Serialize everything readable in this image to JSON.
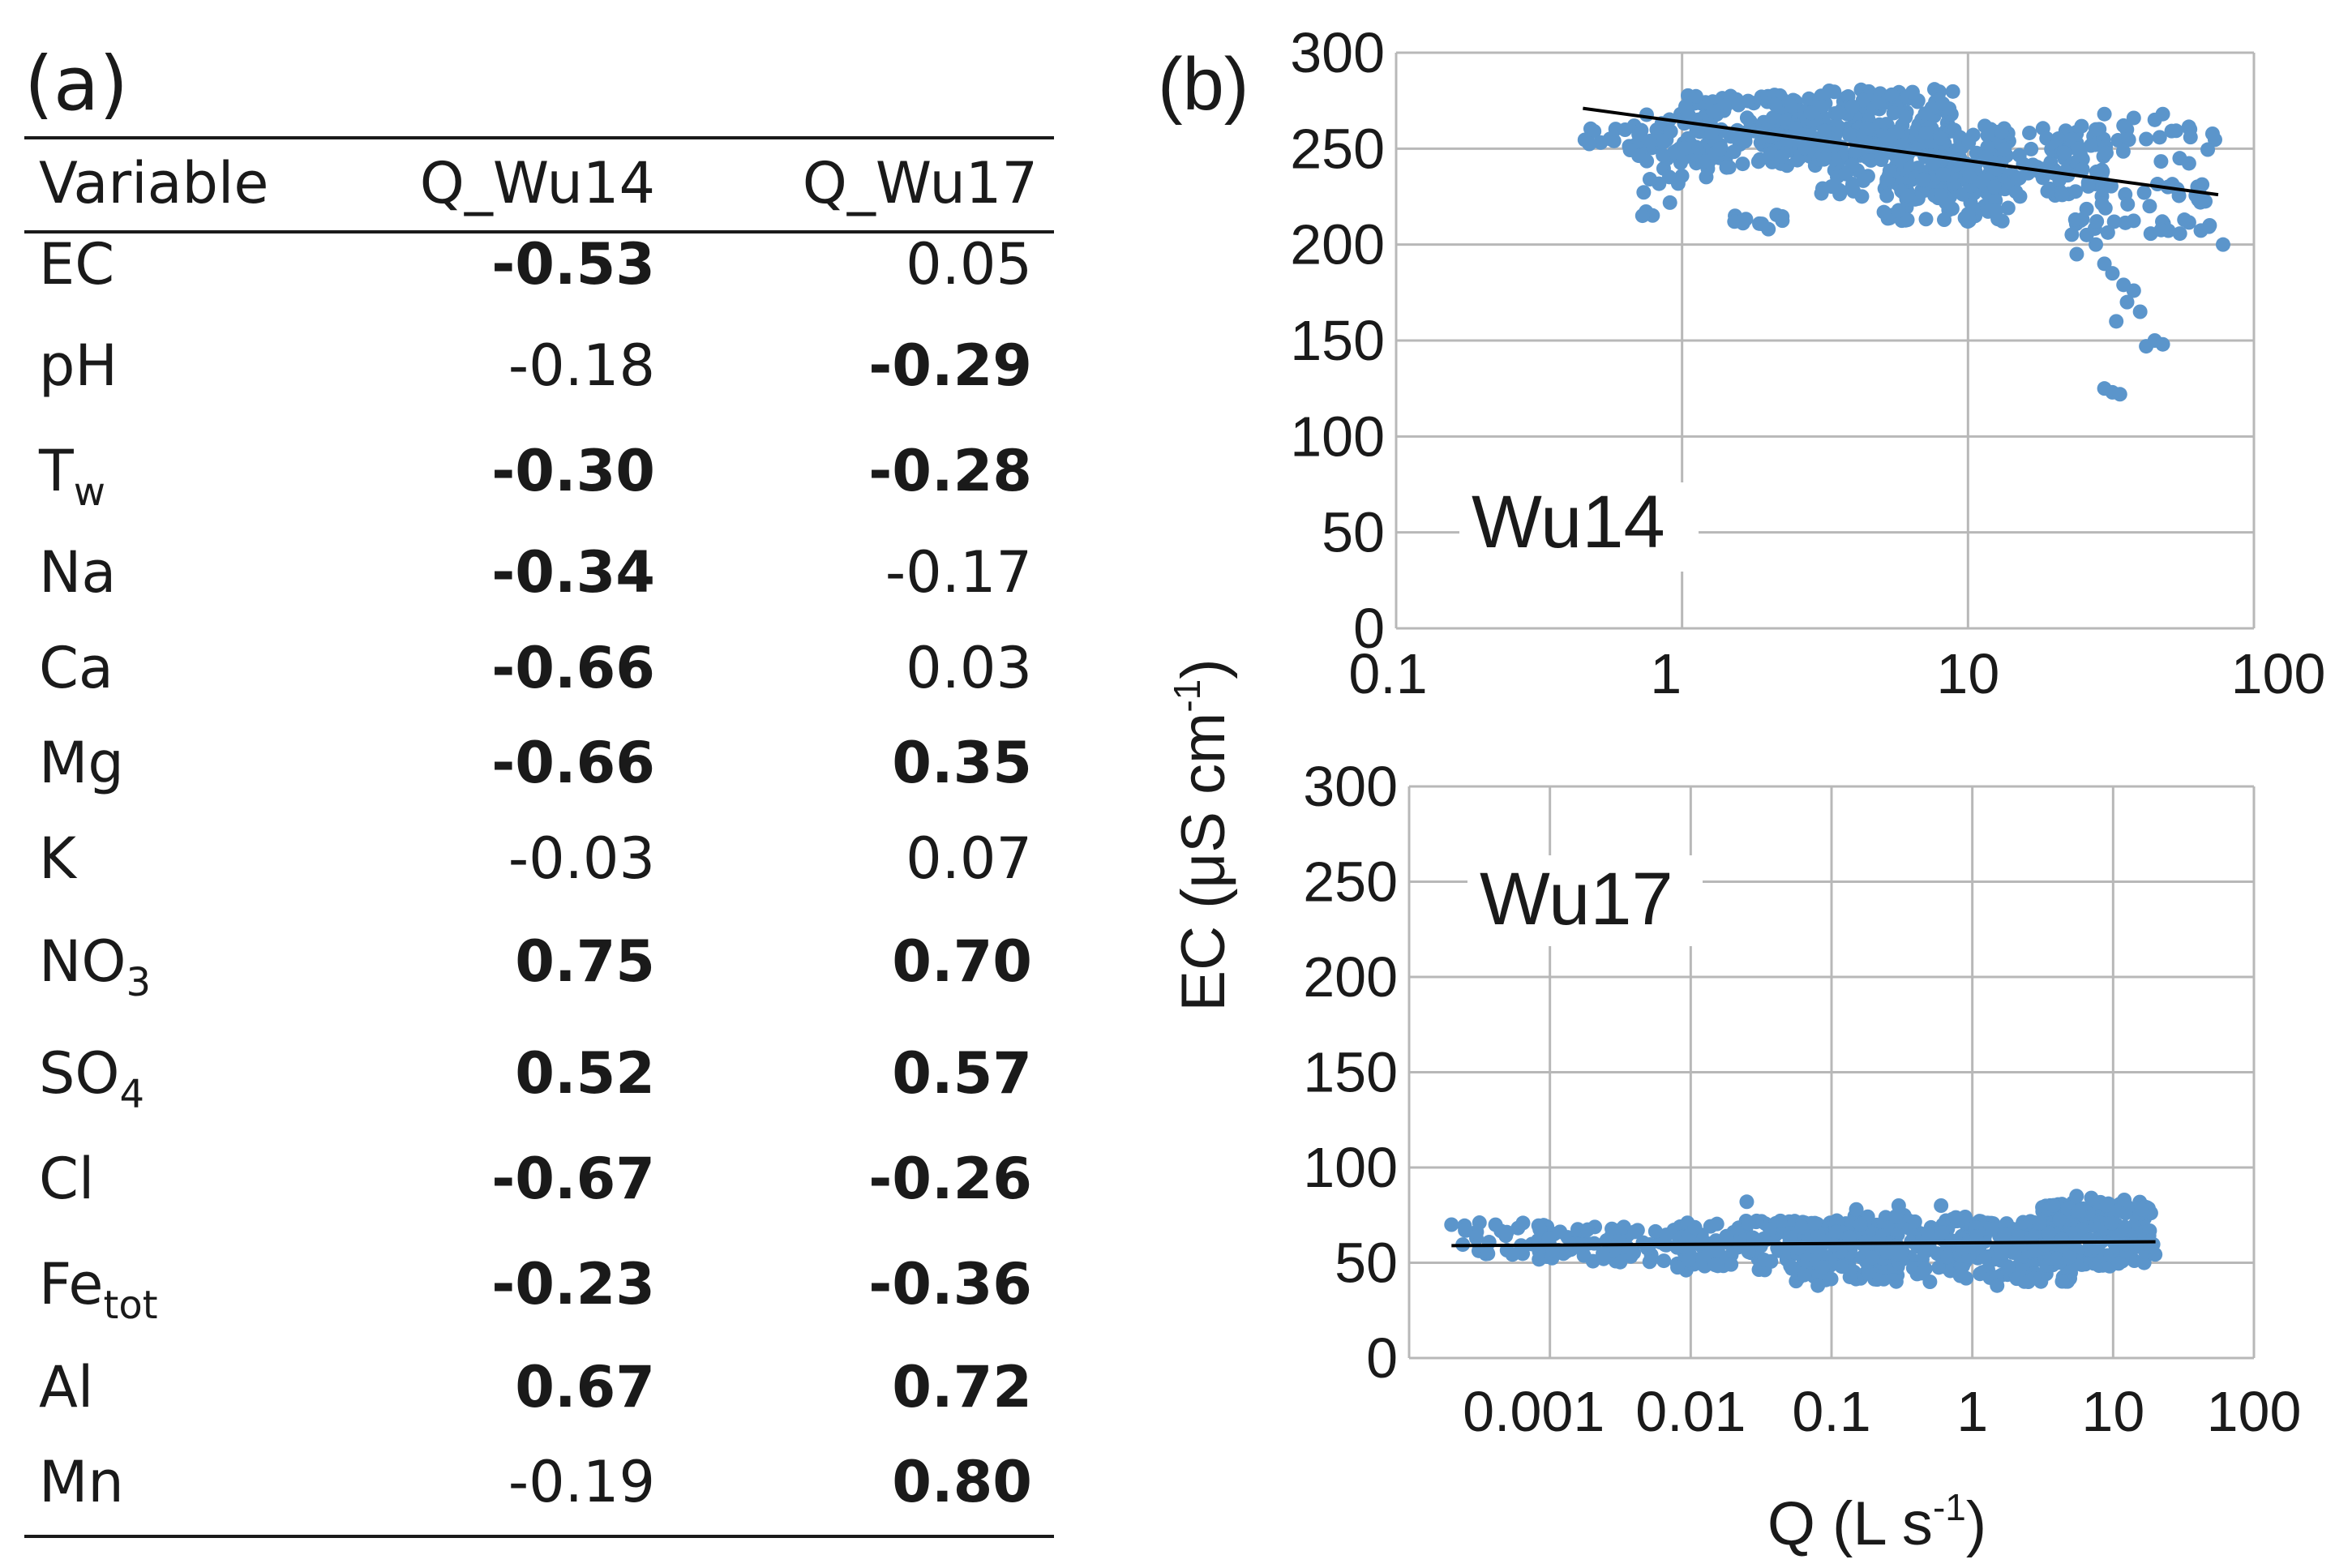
{
  "table": {
    "panel_label": "(a)",
    "headers": [
      "Variable",
      "Q_Wu14",
      "Q_Wu17"
    ],
    "rows": [
      {
        "var": "EC",
        "sub": "",
        "wu14": "-0.53",
        "wu14_bold": true,
        "wu17": "0.05",
        "wu17_bold": false
      },
      {
        "var": "pH",
        "sub": "",
        "wu14": "-0.18",
        "wu14_bold": false,
        "wu17": "-0.29",
        "wu17_bold": true
      },
      {
        "var": "T",
        "sub": "w",
        "wu14": "-0.30",
        "wu14_bold": true,
        "wu17": "-0.28",
        "wu17_bold": true
      },
      {
        "var": "Na",
        "sub": "",
        "wu14": "-0.34",
        "wu14_bold": true,
        "wu17": "-0.17",
        "wu17_bold": false
      },
      {
        "var": "Ca",
        "sub": "",
        "wu14": "-0.66",
        "wu14_bold": true,
        "wu17": "0.03",
        "wu17_bold": false
      },
      {
        "var": "Mg",
        "sub": "",
        "wu14": "-0.66",
        "wu14_bold": true,
        "wu17": "0.35",
        "wu17_bold": true
      },
      {
        "var": "K",
        "sub": "",
        "wu14": "-0.03",
        "wu14_bold": false,
        "wu17": "0.07",
        "wu17_bold": false
      },
      {
        "var": "NO",
        "sub": "3",
        "wu14": "0.75",
        "wu14_bold": true,
        "wu17": "0.70",
        "wu17_bold": true
      },
      {
        "var": "SO",
        "sub": "4",
        "wu14": "0.52",
        "wu14_bold": true,
        "wu17": "0.57",
        "wu17_bold": true
      },
      {
        "var": "Cl",
        "sub": "",
        "wu14": "-0.67",
        "wu14_bold": true,
        "wu17": "-0.26",
        "wu17_bold": true
      },
      {
        "var": "Fe",
        "sub": "tot",
        "wu14": "-0.23",
        "wu14_bold": true,
        "wu17": "-0.36",
        "wu17_bold": true
      },
      {
        "var": "Al",
        "sub": "",
        "wu14": "0.67",
        "wu14_bold": true,
        "wu17": "0.72",
        "wu17_bold": true
      },
      {
        "var": "Mn",
        "sub": "",
        "wu14": "-0.19",
        "wu14_bold": false,
        "wu17": "0.80",
        "wu17_bold": true
      }
    ]
  },
  "colors": {
    "points": "#5b95cb",
    "trend": "#000000",
    "grid": "#b8b8b8",
    "text": "#1a1a1a"
  },
  "chart_data": [
    {
      "type": "scatter",
      "panel_label": "(b)",
      "label": "Wu14",
      "xscale": "log",
      "xlim": [
        0.1,
        100
      ],
      "ylim": [
        0,
        300
      ],
      "xticks": [
        0.1,
        1,
        10,
        100
      ],
      "xtick_labels": [
        "0.1",
        "1",
        "10",
        "100"
      ],
      "yticks": [
        0,
        50,
        100,
        150,
        200,
        250,
        300
      ],
      "ytick_labels": [
        "0",
        "50",
        "100",
        "150",
        "200",
        "250",
        "300"
      ],
      "trend": [
        [
          0.45,
          271
        ],
        [
          75,
          226
        ]
      ],
      "clusters": [
        {
          "x_range": [
            0.42,
            0.9
          ],
          "y_range": [
            248,
            262
          ],
          "n": 25
        },
        {
          "x_range": [
            0.7,
            1.6
          ],
          "y_range": [
            235,
            270
          ],
          "n": 50
        },
        {
          "x_range": [
            1.0,
            3.0
          ],
          "y_range": [
            240,
            278
          ],
          "n": 120
        },
        {
          "x_range": [
            2.0,
            9.0
          ],
          "y_range": [
            245,
            281
          ],
          "n": 240
        },
        {
          "x_range": [
            3.0,
            14.0
          ],
          "y_range": [
            225,
            262
          ],
          "n": 140
        },
        {
          "x_range": [
            5.0,
            15.0
          ],
          "y_range": [
            212,
            240
          ],
          "n": 70
        },
        {
          "x_range": [
            8.0,
            30.0
          ],
          "y_range": [
            225,
            262
          ],
          "n": 110
        },
        {
          "x_range": [
            20.0,
            75.0
          ],
          "y_range": [
            205,
            262
          ],
          "n": 70
        },
        {
          "x_range": [
            0.7,
            1.0
          ],
          "y_range": [
            215,
            235
          ],
          "n": 8
        },
        {
          "x_range": [
            1.5,
            2.6
          ],
          "y_range": [
            208,
            216
          ],
          "n": 10
        }
      ],
      "points": [
        [
          30,
          268
        ],
        [
          38,
          266
        ],
        [
          48,
          268
        ],
        [
          45,
          265
        ],
        [
          35,
          262
        ],
        [
          60,
          256
        ],
        [
          42,
          255
        ],
        [
          28,
          260
        ],
        [
          55,
          245
        ],
        [
          50,
          230
        ],
        [
          70,
          210
        ],
        [
          78,
          200
        ],
        [
          65,
          222
        ],
        [
          28,
          200
        ],
        [
          30,
          190
        ],
        [
          32,
          185
        ],
        [
          35,
          179
        ],
        [
          38,
          176
        ],
        [
          36,
          170
        ],
        [
          40,
          165
        ],
        [
          33,
          160
        ],
        [
          45,
          150
        ],
        [
          48,
          148
        ],
        [
          42,
          147
        ],
        [
          30,
          125
        ],
        [
          32,
          123
        ],
        [
          34,
          122
        ],
        [
          26,
          205
        ],
        [
          24,
          195
        ]
      ]
    },
    {
      "type": "scatter",
      "label": "Wu17",
      "xscale": "log",
      "xlim": [
        0.0001,
        100
      ],
      "ylim": [
        0,
        300
      ],
      "xticks": [
        0.001,
        0.01,
        0.1,
        1,
        10,
        100
      ],
      "xtick_labels": [
        "0.001",
        "0.01",
        "0.1",
        "1",
        "10",
        "100"
      ],
      "yticks": [
        0,
        50,
        100,
        150,
        200,
        250,
        300
      ],
      "ytick_labels": [
        "0",
        "50",
        "100",
        "150",
        "200",
        "250",
        "300"
      ],
      "trend": [
        [
          0.0002,
          59
        ],
        [
          20,
          61
        ]
      ],
      "clusters": [
        {
          "x_range": [
            0.0002,
            0.001
          ],
          "y_range": [
            54,
            72
          ],
          "n": 30
        },
        {
          "x_range": [
            0.0008,
            0.01
          ],
          "y_range": [
            50,
            70
          ],
          "n": 80
        },
        {
          "x_range": [
            0.008,
            0.1
          ],
          "y_range": [
            46,
            72
          ],
          "n": 140
        },
        {
          "x_range": [
            0.05,
            0.3
          ],
          "y_range": [
            40,
            72
          ],
          "n": 90
        },
        {
          "x_range": [
            0.1,
            1.0
          ],
          "y_range": [
            44,
            75
          ],
          "n": 140
        },
        {
          "x_range": [
            0.8,
            5.0
          ],
          "y_range": [
            40,
            72
          ],
          "n": 150
        },
        {
          "x_range": [
            3.0,
            20.0
          ],
          "y_range": [
            48,
            82
          ],
          "n": 200
        }
      ],
      "points": [
        [
          0.0002,
          70
        ],
        [
          0.00025,
          67
        ],
        [
          0.025,
          82
        ],
        [
          0.15,
          78
        ],
        [
          0.3,
          80
        ],
        [
          0.6,
          80
        ],
        [
          5.5,
          85
        ],
        [
          7.0,
          84
        ],
        [
          12.0,
          83
        ],
        [
          9.0,
          80
        ],
        [
          16.0,
          78
        ],
        [
          0.08,
          38
        ],
        [
          0.5,
          40
        ],
        [
          1.5,
          38
        ],
        [
          2.5,
          40
        ]
      ],
      "ylabel": "EC (μS cm",
      "ylabel_sup": "-1",
      "ylabel_end": ")",
      "xlabel": "Q (L s",
      "xlabel_sup": "-1",
      "xlabel_end": ")"
    }
  ]
}
